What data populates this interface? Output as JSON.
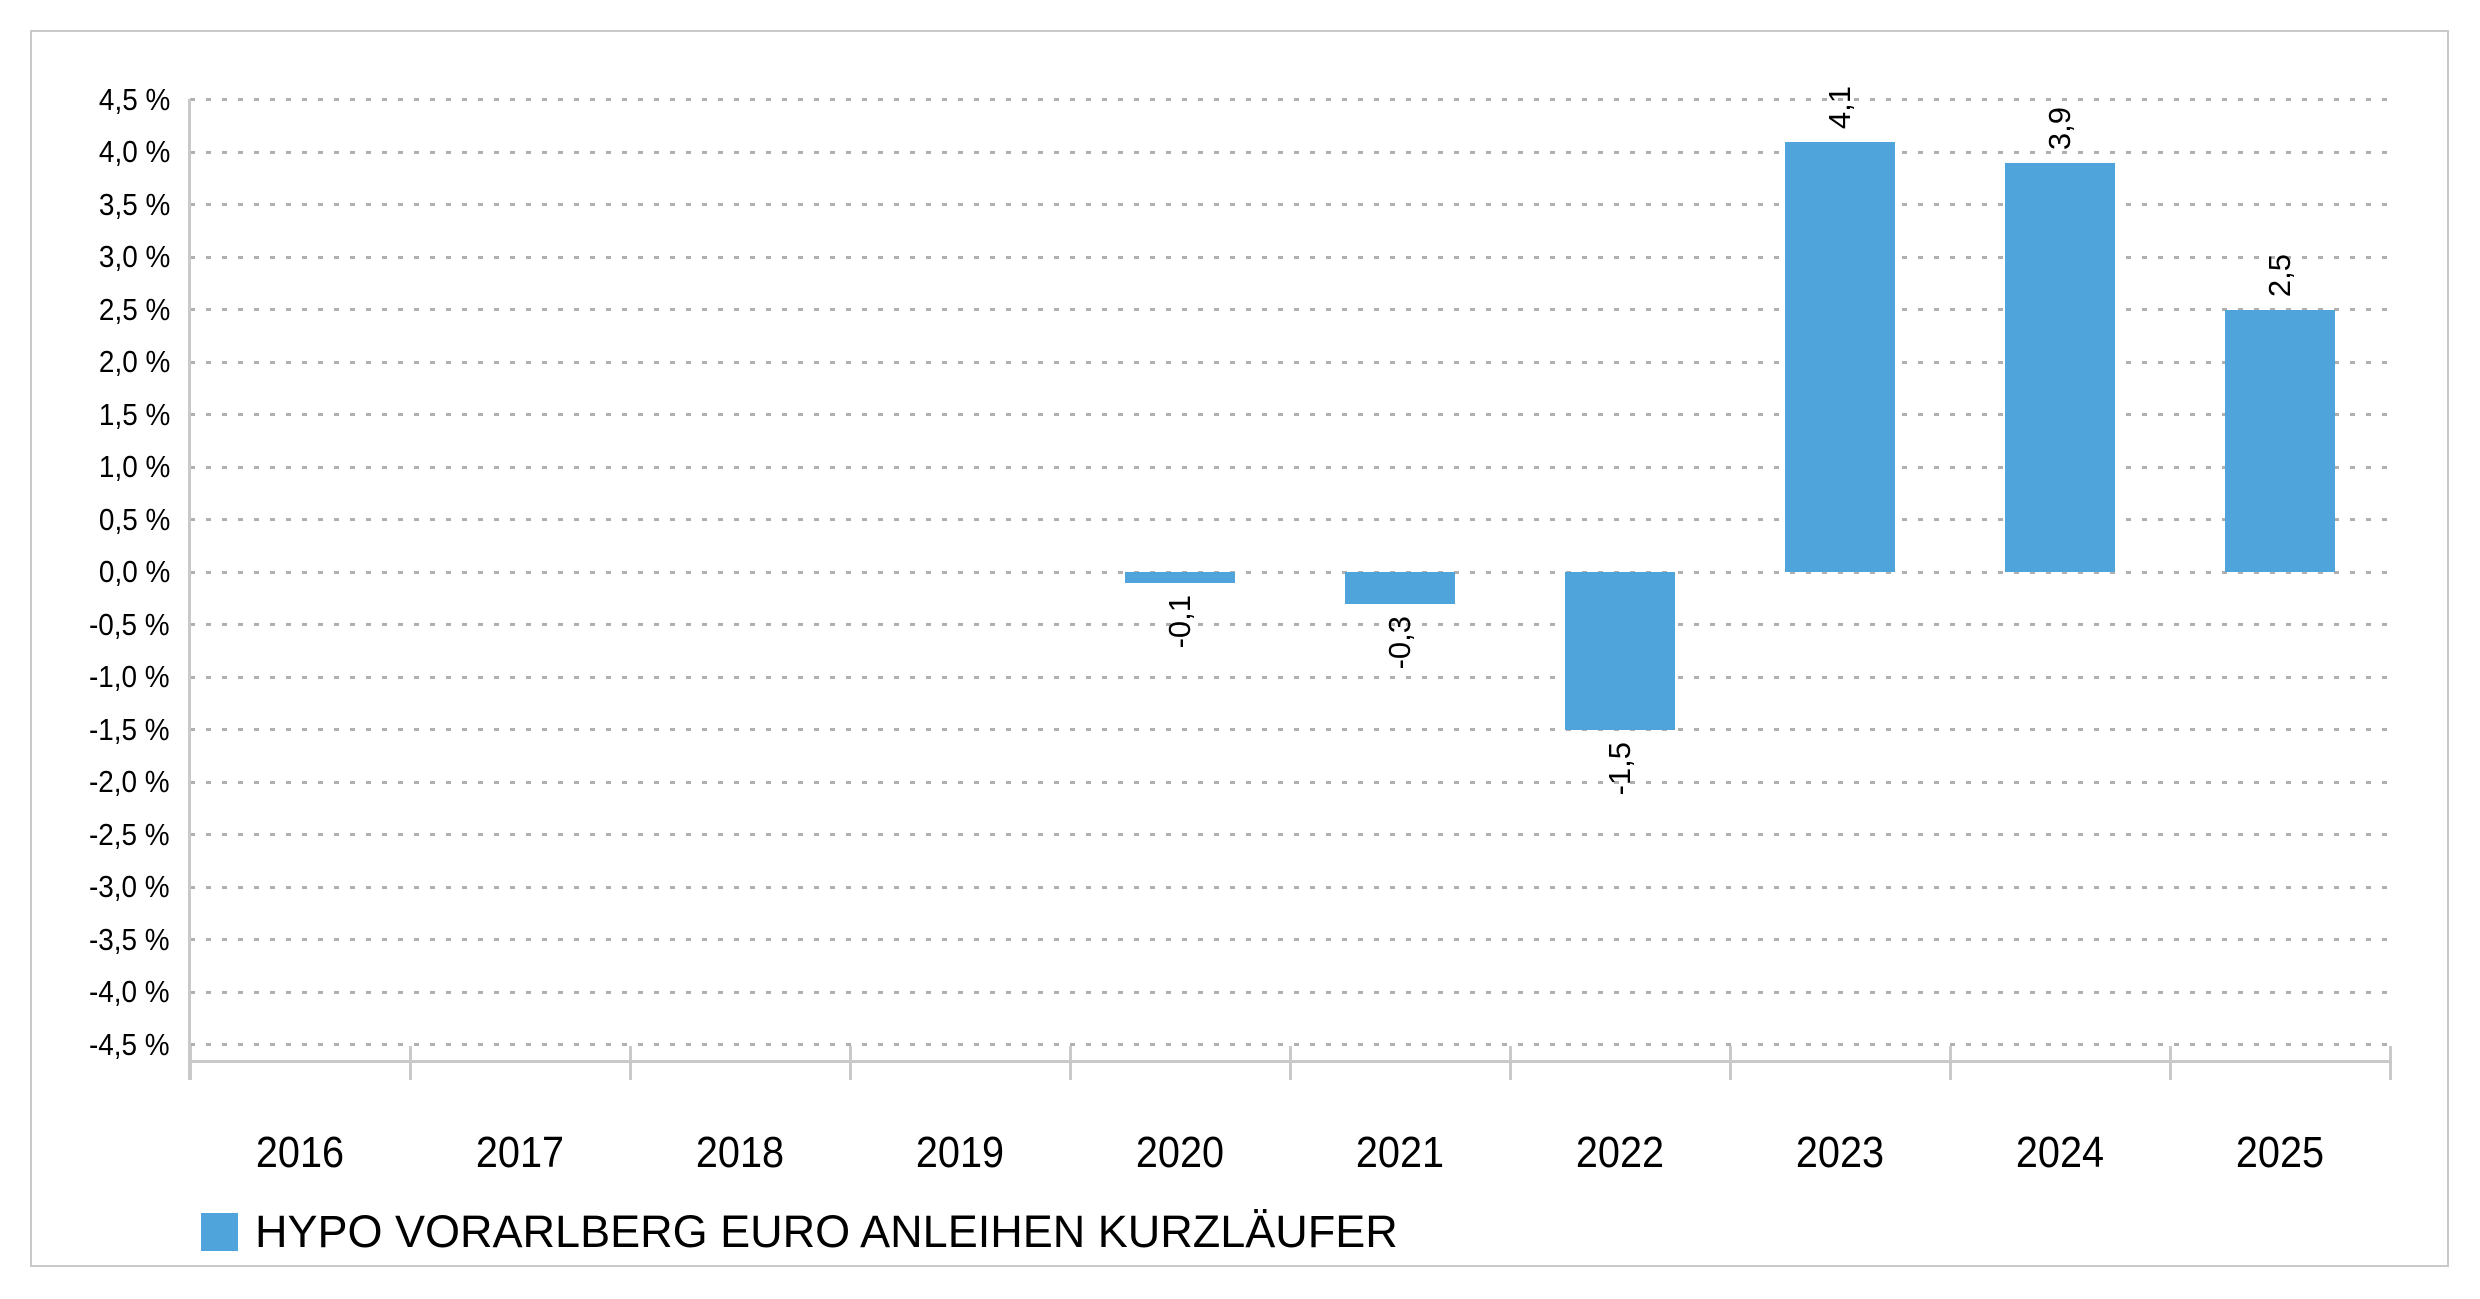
{
  "chart_data": {
    "type": "bar",
    "title": "",
    "categories": [
      "2016",
      "2017",
      "2018",
      "2019",
      "2020",
      "2021",
      "2022",
      "2023",
      "2024",
      "2025"
    ],
    "series": [
      {
        "name": "HYPO VORARLBERG EURO ANLEIHEN KURZLÄUFER",
        "values": [
          null,
          null,
          null,
          null,
          -0.1,
          -0.3,
          -1.5,
          4.1,
          3.9,
          2.5
        ],
        "value_labels": [
          "",
          "",
          "",
          "",
          "-0,1",
          "-0,3",
          "-1,5",
          "4,1",
          "3,9",
          "2,5"
        ]
      }
    ],
    "xlabel": "",
    "ylabel": "",
    "y_axis": {
      "min": -4.5,
      "max": 4.5,
      "step": 0.5,
      "unit": "%",
      "tick_labels": [
        "4,5 %",
        "4,0 %",
        "3,5 %",
        "3,0 %",
        "2,5 %",
        "2,0 %",
        "1,5 %",
        "1,0 %",
        "0,5 %",
        "0,0 %",
        "-0,5 %",
        "-1,0 %",
        "-1,5 %",
        "-2,0 %",
        "-2,5 %",
        "-3,0 %",
        "-3,5 %",
        "-4,0 %",
        "-4,5 %"
      ]
    },
    "grid": {
      "horizontal": "dotted",
      "vertical": "none"
    },
    "value_label_rotation_deg": 270,
    "legend": {
      "position": "bottom-left",
      "entries": [
        {
          "label": "HYPO VORARLBERG EURO ANLEIHEN KURZLÄUFER",
          "color": "#4FA4DB"
        }
      ]
    },
    "colors": {
      "bar": "#4FA4DB",
      "gridline": "#B0B0B0",
      "axis_line": "#C9C9C9",
      "frame_border": "#C9C9C9",
      "text": "#000000",
      "background": "#FFFFFF"
    }
  }
}
